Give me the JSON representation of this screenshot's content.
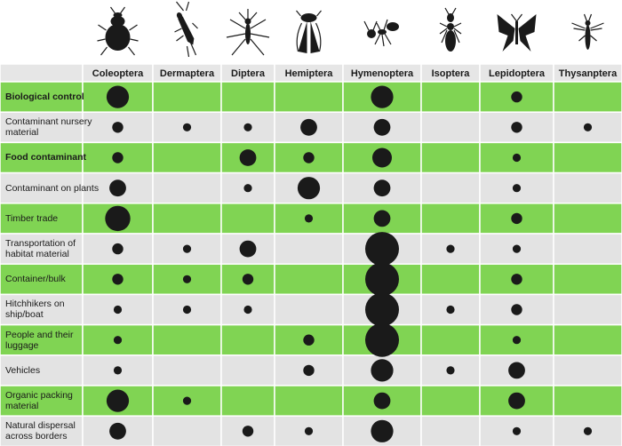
{
  "chart_data": {
    "type": "bubble-matrix",
    "colors": {
      "green_row": "#80d453",
      "grey_row": "#e3e3e3",
      "header_row": "#e6e6e6",
      "dot": "#1a1a1a",
      "border": "#ffffff"
    },
    "columns": [
      {
        "label": "Coleoptera",
        "icon": "beetle-icon"
      },
      {
        "label": "Dermaptera",
        "icon": "earwig-icon"
      },
      {
        "label": "Diptera",
        "icon": "mosquito-icon"
      },
      {
        "label": "Hemiptera",
        "icon": "cicada-icon"
      },
      {
        "label": "Hymenoptera",
        "icon": "ant-icon"
      },
      {
        "label": "Isoptera",
        "icon": "termite-icon"
      },
      {
        "label": "Lepidoptera",
        "icon": "butterfly-icon"
      },
      {
        "label": "Thysanptera",
        "icon": "thrips-icon"
      }
    ],
    "rows": [
      {
        "label": "Biological control",
        "bold": true,
        "values": [
          3,
          0,
          0,
          0,
          3,
          0,
          1,
          0
        ]
      },
      {
        "label": "Contaminant nursery material",
        "bold": false,
        "values": [
          1,
          0.5,
          0.5,
          2,
          2,
          0,
          1,
          0.5
        ]
      },
      {
        "label": "Food contaminant",
        "bold": true,
        "values": [
          1,
          0,
          2,
          1,
          2.5,
          0,
          0.5,
          0
        ]
      },
      {
        "label": "Contaminant on plants",
        "bold": false,
        "values": [
          2,
          0,
          0.5,
          3,
          2,
          0,
          0.5,
          0
        ]
      },
      {
        "label": "Timber trade",
        "bold": false,
        "values": [
          3.5,
          0,
          0,
          0.5,
          2,
          0,
          1,
          0
        ]
      },
      {
        "label": "Transportation of habitat material",
        "bold": false,
        "values": [
          1,
          0.5,
          2,
          0,
          5,
          0.5,
          0.5,
          0
        ]
      },
      {
        "label": "Container/bulk",
        "bold": false,
        "values": [
          1,
          0.5,
          1,
          0,
          5,
          0,
          1,
          0
        ]
      },
      {
        "label": "Hitchhikers on ship/boat",
        "bold": false,
        "values": [
          0.5,
          0.5,
          0.5,
          0,
          5,
          0.5,
          1,
          0
        ]
      },
      {
        "label": "People and their luggage",
        "bold": false,
        "values": [
          0.5,
          0,
          0,
          1,
          5,
          0,
          0.5,
          0
        ]
      },
      {
        "label": "Vehicles",
        "bold": false,
        "values": [
          0.5,
          0,
          0,
          1,
          3,
          0.5,
          2,
          0
        ]
      },
      {
        "label": "Organic packing material",
        "bold": false,
        "values": [
          3,
          0.5,
          0,
          0,
          2,
          0,
          2,
          0
        ]
      },
      {
        "label": "Natural dispersal across borders",
        "bold": false,
        "values": [
          2,
          0,
          1,
          0.5,
          3,
          0,
          0.5,
          0.5
        ]
      }
    ]
  }
}
